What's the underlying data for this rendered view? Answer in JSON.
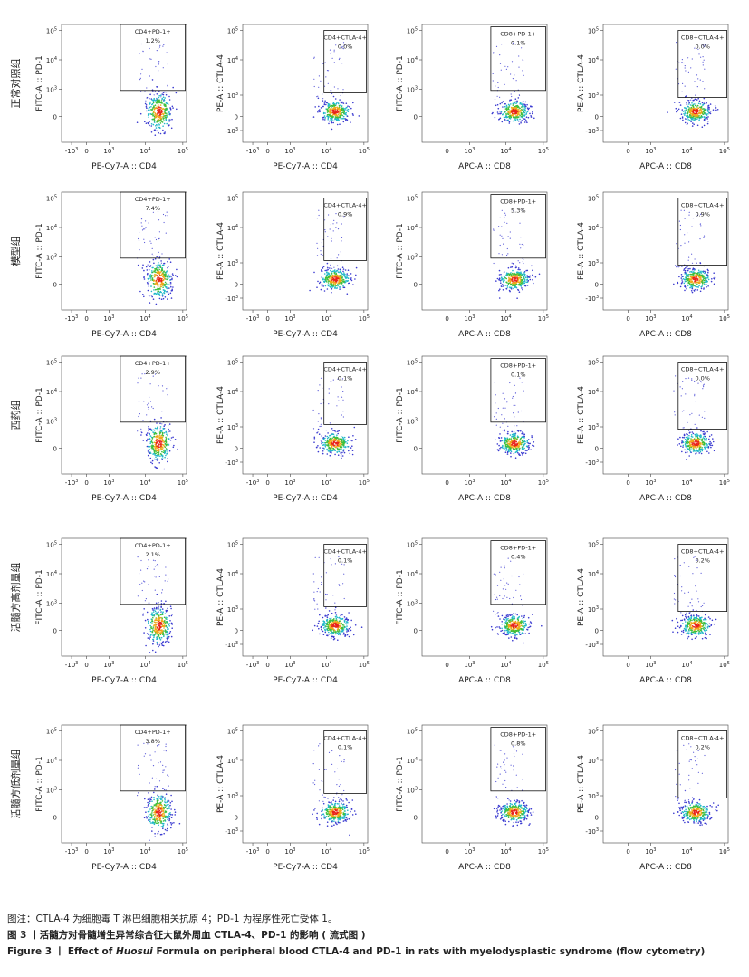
{
  "axes": {
    "x_cd4": [
      {
        "text": "-10",
        "sup": "3"
      },
      {
        "text": "0",
        "sup": ""
      },
      {
        "text": "10",
        "sup": "3"
      },
      {
        "text": "10",
        "sup": "4"
      },
      {
        "text": "10",
        "sup": "5"
      }
    ],
    "x_cd8": [
      {
        "text": "0",
        "sup": ""
      },
      {
        "text": "10",
        "sup": "3"
      },
      {
        "text": "10",
        "sup": "4"
      },
      {
        "text": "10",
        "sup": "5"
      }
    ],
    "y_pd1": [
      {
        "text": "10",
        "sup": "5"
      },
      {
        "text": "10",
        "sup": "4"
      },
      {
        "text": "10",
        "sup": "3"
      },
      {
        "text": "0",
        "sup": ""
      }
    ],
    "y_ctla4": [
      {
        "text": "10",
        "sup": "5"
      },
      {
        "text": "10",
        "sup": "4"
      },
      {
        "text": "10",
        "sup": "3"
      },
      {
        "text": "0",
        "sup": ""
      },
      {
        "text": "-10",
        "sup": "3"
      }
    ]
  },
  "rows": [
    {
      "label": "正常对照组",
      "panels": [
        {
          "ylabel": "FITC-A :: PD-1",
          "xlabel": "PE-Cy7-A :: CD4",
          "gate": "CD4+PD-1+",
          "percent": "1.2%"
        },
        {
          "ylabel": "PE-A :: CTLA-4",
          "xlabel": "PE-Cy7-A :: CD4",
          "gate": "CD4+CTLA-4+",
          "percent": "0.0%"
        },
        {
          "ylabel": "FITC-A :: PD-1",
          "xlabel": "APC-A :: CD8",
          "gate": "CD8+PD-1+",
          "percent": "0.1%"
        },
        {
          "ylabel": "PE-A :: CTLA-4",
          "xlabel": "APC-A :: CD8",
          "gate": "CD8+CTLA-4+",
          "percent": "0.0%"
        }
      ]
    },
    {
      "label": "模型组",
      "panels": [
        {
          "ylabel": "FITC-A :: PD-1",
          "xlabel": "PE-Cy7-A :: CD4",
          "gate": "CD4+PD-1+",
          "percent": "7.4%"
        },
        {
          "ylabel": "PE-A :: CTLA-4",
          "xlabel": "PE-Cy7-A :: CD4",
          "gate": "CD4+CTLA-4+",
          "percent": "0.9%"
        },
        {
          "ylabel": "FITC-A :: PD-1",
          "xlabel": "APC-A :: CD8",
          "gate": "CD8+PD-1+",
          "percent": "5.3%"
        },
        {
          "ylabel": "PE-A :: CTLA-4",
          "xlabel": "APC-A :: CD8",
          "gate": "CD8+CTLA-4+",
          "percent": "0.9%"
        }
      ]
    },
    {
      "label": "西药组",
      "panels": [
        {
          "ylabel": "FITC-A :: PD-1",
          "xlabel": "PE-Cy7-A :: CD4",
          "gate": "CD4+PD-1+",
          "percent": "2.9%"
        },
        {
          "ylabel": "PE-A :: CTLA-4",
          "xlabel": "PE-Cy7-A :: CD4",
          "gate": "CD4+CTLA-4+",
          "percent": "0.1%"
        },
        {
          "ylabel": "FITC-A :: PD-1",
          "xlabel": "APC-A :: CD8",
          "gate": "CD8+PD-1+",
          "percent": "0.1%"
        },
        {
          "ylabel": "PE-A :: CTLA-4",
          "xlabel": "APC-A :: CD8",
          "gate": "CD8+CTLA-4+",
          "percent": "0.0%"
        }
      ]
    },
    {
      "label": "活髓方高剂量组",
      "panels": [
        {
          "ylabel": "FITC-A :: PD-1",
          "xlabel": "PE-Cy7-A :: CD4",
          "gate": "CD4+PD-1+",
          "percent": "2.1%"
        },
        {
          "ylabel": "PE-A :: CTLA-4",
          "xlabel": "PE-Cy7-A :: CD4",
          "gate": "CD4+CTLA-4+",
          "percent": "0.1%"
        },
        {
          "ylabel": "FITC-A :: PD-1",
          "xlabel": "APC-A :: CD8",
          "gate": "CD8+PD-1+",
          "percent": "0.4%"
        },
        {
          "ylabel": "PE-A :: CTLA-4",
          "xlabel": "APC-A :: CD8",
          "gate": "CD8+CTLA-4+",
          "percent": "0.2%"
        }
      ]
    },
    {
      "label": "活髓方低剂量组",
      "panels": [
        {
          "ylabel": "FITC-A :: PD-1",
          "xlabel": "PE-Cy7-A :: CD4",
          "gate": "CD4+PD-1+",
          "percent": "3.8%"
        },
        {
          "ylabel": "PE-A :: CTLA-4",
          "xlabel": "PE-Cy7-A :: CD4",
          "gate": "CD4+CTLA-4+",
          "percent": "0.1%"
        },
        {
          "ylabel": "FITC-A :: PD-1",
          "xlabel": "APC-A :: CD8",
          "gate": "CD8+PD-1+",
          "percent": "0.8%"
        },
        {
          "ylabel": "PE-A :: CTLA-4",
          "xlabel": "APC-A :: CD8",
          "gate": "CD8+CTLA-4+",
          "percent": "0.2%"
        }
      ]
    }
  ],
  "caption": {
    "note": "图注：CTLA-4 为细胞毒 T 淋巴细胞相关抗原 4；PD-1 为程序性死亡受体 1。",
    "title_cn": "图 3 丨活髓方对骨髓增生异常综合征大鼠外周血 CTLA-4、PD-1 的影响 ( 流式图 )",
    "title_en_pre": "Figure 3 丨 Effect of ",
    "title_en_em": "Huosui",
    "title_en_post": " Formula on peripheral blood CTLA-4 and PD-1 in rats with myelodysplastic syndrome (flow cytometry)"
  }
}
